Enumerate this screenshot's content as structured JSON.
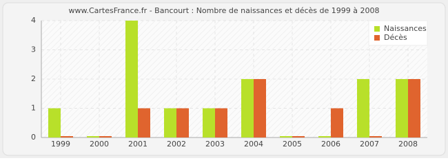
{
  "chart_data": {
    "type": "bar",
    "title": "www.CartesFrance.fr - Bancourt : Nombre de naissances et décès de 1999 à 2008",
    "categories": [
      "1999",
      "2000",
      "2001",
      "2002",
      "2003",
      "2004",
      "2005",
      "2006",
      "2007",
      "2008"
    ],
    "series": [
      {
        "name": "Naissances",
        "color": "#b8e02a",
        "values": [
          1,
          0,
          4,
          1,
          1,
          2,
          0,
          0,
          2,
          2
        ]
      },
      {
        "name": "Décès",
        "color": "#e0642e",
        "values": [
          0,
          0,
          1,
          1,
          1,
          2,
          0,
          1,
          0,
          2
        ]
      }
    ],
    "ylim": [
      0,
      4
    ],
    "yticks": [
      0,
      1,
      2,
      3,
      4
    ],
    "grid": true,
    "legend": "top-right"
  }
}
